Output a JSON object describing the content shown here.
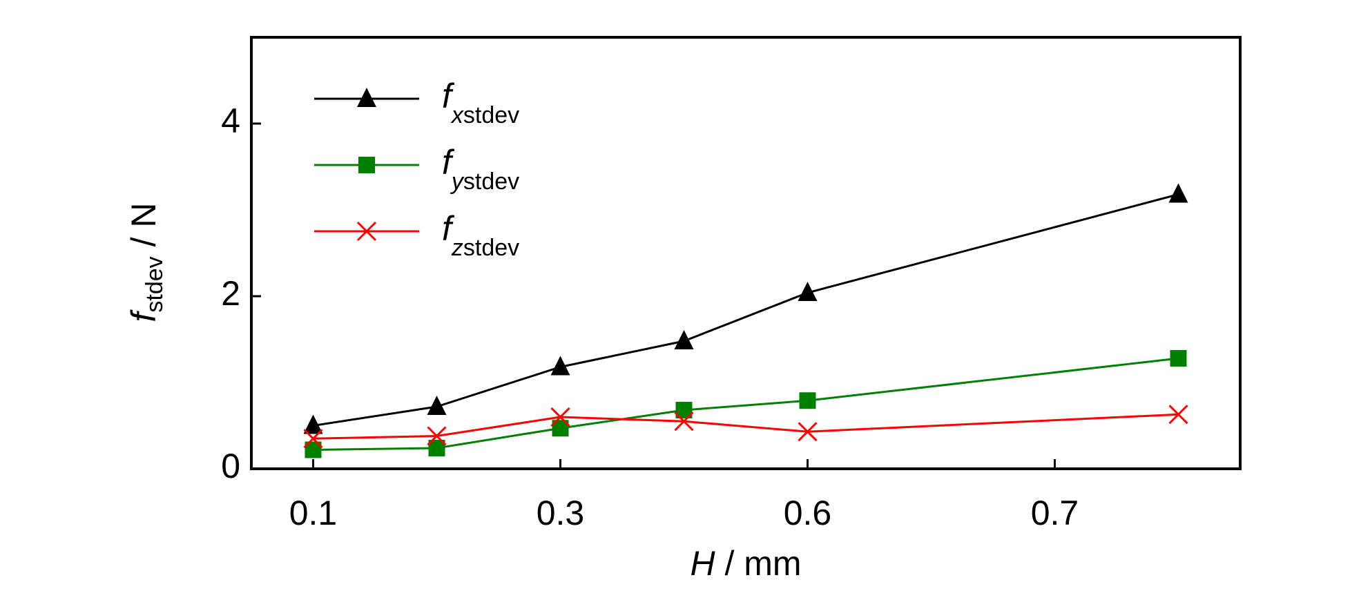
{
  "chart_data": {
    "type": "line",
    "x_label": "H / mm",
    "y_label": "fstdev / N",
    "x": [
      0,
      1,
      2,
      3,
      4,
      7
    ],
    "xlim": [
      -0.5,
      7.5
    ],
    "xticks": [
      {
        "value": 0,
        "label": "0.1"
      },
      {
        "value": 2,
        "label": "0.3"
      },
      {
        "value": 4,
        "label": "0.6"
      },
      {
        "value": 6,
        "label": "0.7"
      }
    ],
    "ylim": [
      0,
      5
    ],
    "yticks": [
      0,
      2,
      4
    ],
    "legend": "upper left",
    "series": [
      {
        "name": "fxstdev",
        "color": "#000000",
        "marker": "triangle",
        "values": [
          0.5,
          0.72,
          1.18,
          1.48,
          2.04,
          3.18
        ]
      },
      {
        "name": "fystdev",
        "color": "#008000",
        "marker": "square",
        "values": [
          0.22,
          0.24,
          0.47,
          0.68,
          0.79,
          1.28
        ]
      },
      {
        "name": "fzstdev",
        "color": "#ff0000",
        "marker": "x",
        "values": [
          0.35,
          0.38,
          0.6,
          0.55,
          0.43,
          0.63
        ]
      }
    ]
  }
}
